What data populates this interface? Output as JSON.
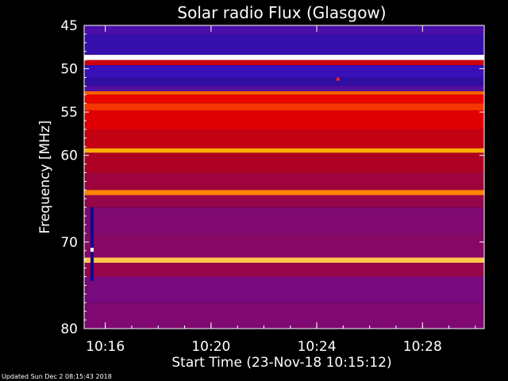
{
  "chart_data": {
    "type": "heatmap",
    "title": "Solar radio Flux (Glasgow)",
    "xlabel": "Start Time (23-Nov-18 10:15:12)",
    "ylabel": "Frequency [MHz]",
    "ylim": [
      45,
      80
    ],
    "y_inverted": true,
    "x_unit": "minutes",
    "xlim": [
      "10:15:12",
      "10:30:20"
    ],
    "x_ticks": [
      "10:16",
      "10:20",
      "10:24",
      "10:28"
    ],
    "y_ticks": [
      45,
      50,
      55,
      60,
      70,
      80
    ],
    "colormap": [
      "#1b0a6e",
      "#3a10b8",
      "#7a0a7a",
      "#b0001e",
      "#e80000",
      "#ff5a00",
      "#ffb000",
      "#ffffff"
    ],
    "bands": [
      {
        "f0": 45.0,
        "f1": 46.0,
        "level": 0.18
      },
      {
        "f0": 46.0,
        "f1": 48.4,
        "level": 0.12
      },
      {
        "f0": 48.4,
        "f1": 49.0,
        "level": 1.0
      },
      {
        "f0": 49.0,
        "f1": 49.6,
        "level": 0.5
      },
      {
        "f0": 49.6,
        "f1": 51.0,
        "level": 0.14
      },
      {
        "f0": 51.0,
        "f1": 52.0,
        "level": 0.1
      },
      {
        "f0": 52.0,
        "f1": 52.6,
        "level": 0.2
      },
      {
        "f0": 52.6,
        "f1": 53.0,
        "level": 0.72
      },
      {
        "f0": 53.0,
        "f1": 54.0,
        "level": 0.58
      },
      {
        "f0": 54.0,
        "f1": 54.8,
        "level": 0.66
      },
      {
        "f0": 54.8,
        "f1": 57.0,
        "level": 0.55
      },
      {
        "f0": 57.0,
        "f1": 59.2,
        "level": 0.48
      },
      {
        "f0": 59.2,
        "f1": 59.7,
        "level": 0.85
      },
      {
        "f0": 59.7,
        "f1": 62.0,
        "level": 0.42
      },
      {
        "f0": 62.0,
        "f1": 64.0,
        "level": 0.38
      },
      {
        "f0": 64.0,
        "f1": 64.6,
        "level": 0.78
      },
      {
        "f0": 64.6,
        "f1": 66.0,
        "level": 0.36
      },
      {
        "f0": 66.0,
        "f1": 69.0,
        "level": 0.3
      },
      {
        "f0": 69.0,
        "f1": 71.8,
        "level": 0.32
      },
      {
        "f0": 71.8,
        "f1": 72.4,
        "level": 0.9
      },
      {
        "f0": 72.4,
        "f1": 74.0,
        "level": 0.36
      },
      {
        "f0": 74.0,
        "f1": 77.0,
        "level": 0.28
      },
      {
        "f0": 77.0,
        "f1": 80.0,
        "level": 0.3
      }
    ],
    "features": [
      {
        "t": "10:15:30",
        "f0": 66.0,
        "f1": 74.5,
        "kind": "narrow burst"
      },
      {
        "t": "10:24:48",
        "f": 51.2,
        "kind": "spot"
      }
    ]
  },
  "footer": {
    "updated": "Updated Sun Dec  2 08:15:43 2018"
  }
}
